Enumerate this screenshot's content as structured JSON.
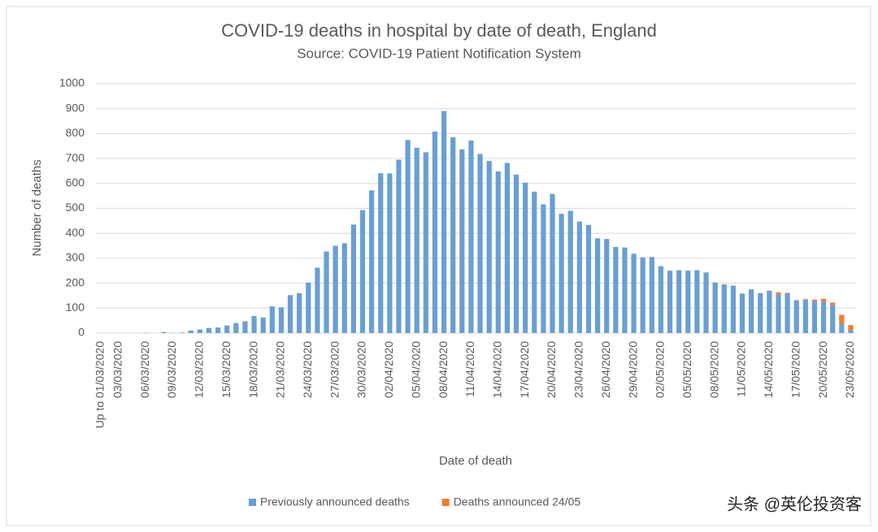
{
  "chart_data": {
    "type": "stacked_bar",
    "title": "COVID-19 deaths in hospital by date of death, England",
    "subtitle": "Source: COVID-19 Patient Notification System",
    "x_label": "Date of death",
    "y_label": "Number of deaths",
    "watermark": "头条 @英伦投资客",
    "categories": [
      "Up to 01/03/2020",
      null,
      "03/03/2020",
      null,
      null,
      "06/03/2020",
      null,
      null,
      "09/03/2020",
      null,
      null,
      "12/03/2020",
      null,
      null,
      "15/03/2020",
      null,
      null,
      "18/03/2020",
      null,
      null,
      "21/03/2020",
      null,
      null,
      "24/03/2020",
      null,
      null,
      "27/03/2020",
      null,
      null,
      "30/03/2020",
      null,
      null,
      "02/04/2020",
      null,
      null,
      "05/04/2020",
      null,
      null,
      "08/04/2020",
      null,
      null,
      "11/04/2020",
      null,
      null,
      "14/04/2020",
      null,
      null,
      "17/04/2020",
      null,
      null,
      "20/04/2020",
      null,
      null,
      "23/04/2020",
      null,
      null,
      "26/04/2020",
      null,
      null,
      "29/04/2020",
      null,
      null,
      "02/05/2020",
      null,
      null,
      "05/05/2020",
      null,
      null,
      "08/05/2020",
      null,
      null,
      "11/05/2020",
      null,
      null,
      "14/05/2020",
      null,
      null,
      "17/05/2020",
      null,
      null,
      "20/05/2020",
      null,
      null,
      "23/05/2020"
    ],
    "series": [
      {
        "name": "Previously announced deaths",
        "color": "#6a9fd2",
        "values": [
          0,
          0,
          0,
          0,
          0,
          1,
          0,
          4,
          1,
          2,
          10,
          14,
          20,
          22,
          30,
          40,
          47,
          68,
          62,
          107,
          103,
          152,
          160,
          202,
          262,
          327,
          350,
          360,
          435,
          493,
          572,
          641,
          640,
          695,
          774,
          743,
          725,
          808,
          890,
          785,
          737,
          772,
          718,
          690,
          648,
          682,
          635,
          603,
          567,
          516,
          558,
          478,
          490,
          447,
          433,
          380,
          377,
          345,
          343,
          318,
          303,
          305,
          268,
          250,
          252,
          250,
          252,
          243,
          203,
          195,
          190,
          158,
          175,
          160,
          168,
          155,
          158,
          130,
          133,
          128,
          125,
          112,
          38,
          10
        ]
      },
      {
        "name": "Deaths announced 24/05",
        "color": "#ed7d31",
        "values": [
          0,
          0,
          0,
          0,
          0,
          0,
          0,
          0,
          0,
          0,
          0,
          0,
          0,
          0,
          0,
          0,
          0,
          0,
          0,
          0,
          0,
          0,
          0,
          0,
          0,
          0,
          0,
          0,
          0,
          0,
          0,
          0,
          0,
          0,
          0,
          0,
          0,
          0,
          0,
          0,
          0,
          0,
          0,
          0,
          0,
          0,
          0,
          0,
          0,
          0,
          0,
          0,
          0,
          0,
          0,
          0,
          0,
          0,
          0,
          0,
          0,
          0,
          0,
          0,
          0,
          0,
          0,
          0,
          0,
          0,
          0,
          0,
          0,
          0,
          2,
          8,
          3,
          2,
          3,
          6,
          12,
          10,
          35,
          22
        ]
      }
    ],
    "ylim": [
      0,
      1000
    ],
    "yticks": [
      0,
      100,
      200,
      300,
      400,
      500,
      600,
      700,
      800,
      900,
      1000
    ],
    "grid": true,
    "legend": "bottom"
  }
}
